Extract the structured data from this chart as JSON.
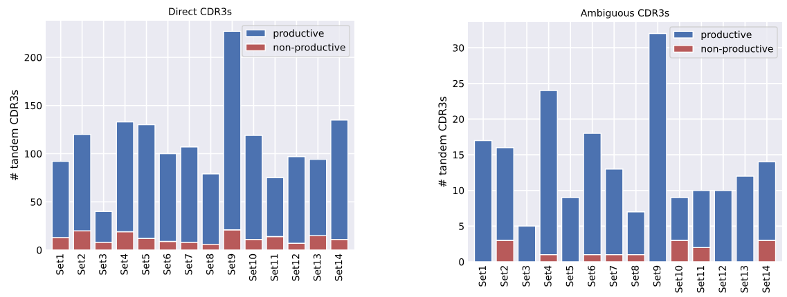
{
  "chart_data": [
    {
      "type": "bar",
      "title": "Direct CDR3s",
      "ylabel": "# tandem CDR3s",
      "stacked": true,
      "grid": true,
      "legend": "top right",
      "categories": [
        "Set1",
        "Set2",
        "Set3",
        "Set4",
        "Set5",
        "Set6",
        "Set7",
        "Set8",
        "Set9",
        "Set10",
        "Set11",
        "Set12",
        "Set13",
        "Set14"
      ],
      "series": [
        {
          "name": "non-productive",
          "color": "#b85a5a",
          "values": [
            13,
            20,
            8,
            19,
            12,
            9,
            8,
            6,
            21,
            11,
            14,
            7,
            15,
            11
          ]
        },
        {
          "name": "productive",
          "color": "#4c72b0",
          "values": [
            79,
            100,
            32,
            114,
            118,
            91,
            99,
            73,
            206,
            108,
            61,
            90,
            79,
            124
          ]
        }
      ],
      "ylim": [
        0,
        238
      ],
      "yticks": [
        0,
        50,
        100,
        150,
        200
      ]
    },
    {
      "type": "bar",
      "title": "Ambiguous CDR3s",
      "ylabel": "# tandem CDR3s",
      "stacked": true,
      "grid": true,
      "legend": "top right",
      "categories": [
        "Set1",
        "Set2",
        "Set3",
        "Set4",
        "Set5",
        "Set6",
        "Set7",
        "Set8",
        "Set9",
        "Set10",
        "Set11",
        "Set12",
        "Set13",
        "Set14"
      ],
      "series": [
        {
          "name": "non-productive",
          "color": "#b85a5a",
          "values": [
            0,
            3,
            0,
            1,
            0,
            1,
            1,
            1,
            0,
            3,
            2,
            0,
            0,
            3
          ]
        },
        {
          "name": "productive",
          "color": "#4c72b0",
          "values": [
            17,
            13,
            5,
            23,
            9,
            17,
            12,
            6,
            32,
            6,
            8,
            10,
            12,
            11
          ]
        }
      ],
      "ylim": [
        0,
        33.6
      ],
      "yticks": [
        0,
        5,
        10,
        15,
        20,
        25,
        30
      ]
    }
  ]
}
